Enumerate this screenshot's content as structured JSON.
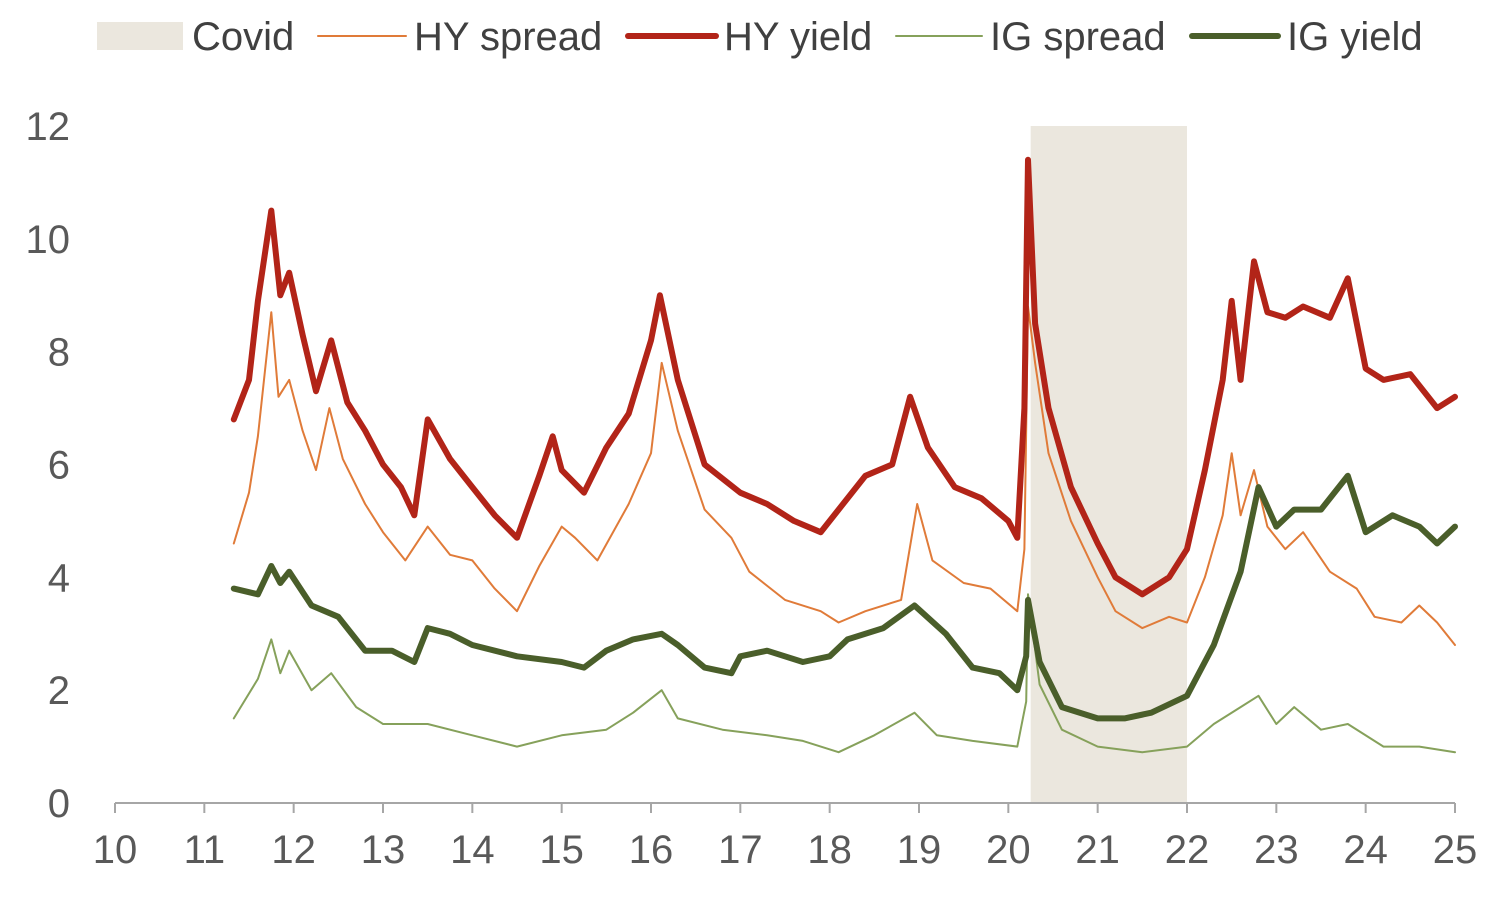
{
  "chart_data": {
    "type": "line",
    "title": "",
    "xlabel": "",
    "ylabel": "",
    "xlim": [
      10,
      25
    ],
    "ylim": [
      0,
      12
    ],
    "x_ticks": [
      "10",
      "11",
      "12",
      "13",
      "14",
      "15",
      "16",
      "17",
      "18",
      "19",
      "20",
      "21",
      "22",
      "23",
      "24",
      "25"
    ],
    "y_ticks": [
      "0",
      "2",
      "4",
      "6",
      "8",
      "10",
      "12"
    ],
    "grid": false,
    "legend_position": "top",
    "shaded_regions": [
      {
        "name": "Covid",
        "x_start": 20.25,
        "x_end": 22.0,
        "color": "#ebe7de"
      }
    ],
    "series": [
      {
        "name": "HY spread",
        "color": "#e07b39",
        "width": 2,
        "points": [
          [
            11.33,
            4.6
          ],
          [
            11.5,
            5.5
          ],
          [
            11.6,
            6.5
          ],
          [
            11.75,
            8.7
          ],
          [
            11.83,
            7.2
          ],
          [
            11.95,
            7.5
          ],
          [
            12.1,
            6.6
          ],
          [
            12.25,
            5.9
          ],
          [
            12.4,
            7.0
          ],
          [
            12.55,
            6.1
          ],
          [
            12.8,
            5.3
          ],
          [
            13.0,
            4.8
          ],
          [
            13.25,
            4.3
          ],
          [
            13.5,
            4.9
          ],
          [
            13.75,
            4.4
          ],
          [
            14.0,
            4.3
          ],
          [
            14.25,
            3.8
          ],
          [
            14.5,
            3.4
          ],
          [
            14.75,
            4.2
          ],
          [
            15.0,
            4.9
          ],
          [
            15.15,
            4.7
          ],
          [
            15.4,
            4.3
          ],
          [
            15.75,
            5.3
          ],
          [
            16.0,
            6.2
          ],
          [
            16.12,
            7.8
          ],
          [
            16.3,
            6.6
          ],
          [
            16.6,
            5.2
          ],
          [
            16.9,
            4.7
          ],
          [
            17.1,
            4.1
          ],
          [
            17.5,
            3.6
          ],
          [
            17.9,
            3.4
          ],
          [
            18.1,
            3.2
          ],
          [
            18.4,
            3.4
          ],
          [
            18.8,
            3.6
          ],
          [
            18.98,
            5.3
          ],
          [
            19.15,
            4.3
          ],
          [
            19.5,
            3.9
          ],
          [
            19.8,
            3.8
          ],
          [
            20.1,
            3.4
          ],
          [
            20.18,
            4.5
          ],
          [
            20.22,
            8.8
          ],
          [
            20.3,
            7.8
          ],
          [
            20.45,
            6.2
          ],
          [
            20.7,
            5.0
          ],
          [
            21.0,
            4.0
          ],
          [
            21.2,
            3.4
          ],
          [
            21.5,
            3.1
          ],
          [
            21.8,
            3.3
          ],
          [
            22.0,
            3.2
          ],
          [
            22.2,
            4.0
          ],
          [
            22.4,
            5.1
          ],
          [
            22.5,
            6.2
          ],
          [
            22.6,
            5.1
          ],
          [
            22.75,
            5.9
          ],
          [
            22.9,
            4.9
          ],
          [
            23.1,
            4.5
          ],
          [
            23.3,
            4.8
          ],
          [
            23.6,
            4.1
          ],
          [
            23.9,
            3.8
          ],
          [
            24.1,
            3.3
          ],
          [
            24.4,
            3.2
          ],
          [
            24.6,
            3.5
          ],
          [
            24.8,
            3.2
          ],
          [
            25.0,
            2.8
          ]
        ]
      },
      {
        "name": "HY yield",
        "color": "#b22418",
        "width": 6,
        "points": [
          [
            11.33,
            6.8
          ],
          [
            11.5,
            7.5
          ],
          [
            11.6,
            8.9
          ],
          [
            11.75,
            10.5
          ],
          [
            11.85,
            9.0
          ],
          [
            11.95,
            9.4
          ],
          [
            12.1,
            8.3
          ],
          [
            12.25,
            7.3
          ],
          [
            12.42,
            8.2
          ],
          [
            12.6,
            7.1
          ],
          [
            12.8,
            6.6
          ],
          [
            13.0,
            6.0
          ],
          [
            13.2,
            5.6
          ],
          [
            13.35,
            5.1
          ],
          [
            13.5,
            6.8
          ],
          [
            13.75,
            6.1
          ],
          [
            14.0,
            5.6
          ],
          [
            14.25,
            5.1
          ],
          [
            14.5,
            4.7
          ],
          [
            14.75,
            5.8
          ],
          [
            14.9,
            6.5
          ],
          [
            15.0,
            5.9
          ],
          [
            15.25,
            5.5
          ],
          [
            15.5,
            6.3
          ],
          [
            15.75,
            6.9
          ],
          [
            16.0,
            8.2
          ],
          [
            16.1,
            9.0
          ],
          [
            16.3,
            7.5
          ],
          [
            16.6,
            6.0
          ],
          [
            17.0,
            5.5
          ],
          [
            17.3,
            5.3
          ],
          [
            17.6,
            5.0
          ],
          [
            17.9,
            4.8
          ],
          [
            18.1,
            5.2
          ],
          [
            18.4,
            5.8
          ],
          [
            18.7,
            6.0
          ],
          [
            18.9,
            7.2
          ],
          [
            19.1,
            6.3
          ],
          [
            19.4,
            5.6
          ],
          [
            19.7,
            5.4
          ],
          [
            20.0,
            5.0
          ],
          [
            20.1,
            4.7
          ],
          [
            20.18,
            7.0
          ],
          [
            20.22,
            11.4
          ],
          [
            20.3,
            8.5
          ],
          [
            20.45,
            7.0
          ],
          [
            20.7,
            5.6
          ],
          [
            21.0,
            4.6
          ],
          [
            21.2,
            4.0
          ],
          [
            21.5,
            3.7
          ],
          [
            21.8,
            4.0
          ],
          [
            22.0,
            4.5
          ],
          [
            22.2,
            5.9
          ],
          [
            22.4,
            7.5
          ],
          [
            22.5,
            8.9
          ],
          [
            22.6,
            7.5
          ],
          [
            22.75,
            9.6
          ],
          [
            22.9,
            8.7
          ],
          [
            23.1,
            8.6
          ],
          [
            23.3,
            8.8
          ],
          [
            23.6,
            8.6
          ],
          [
            23.8,
            9.3
          ],
          [
            24.0,
            7.7
          ],
          [
            24.2,
            7.5
          ],
          [
            24.5,
            7.6
          ],
          [
            24.8,
            7.0
          ],
          [
            25.0,
            7.2
          ]
        ]
      },
      {
        "name": "IG spread",
        "color": "#86a15b",
        "width": 2,
        "points": [
          [
            11.33,
            1.5
          ],
          [
            11.6,
            2.2
          ],
          [
            11.75,
            2.9
          ],
          [
            11.85,
            2.3
          ],
          [
            11.95,
            2.7
          ],
          [
            12.2,
            2.0
          ],
          [
            12.42,
            2.3
          ],
          [
            12.7,
            1.7
          ],
          [
            13.0,
            1.4
          ],
          [
            13.5,
            1.4
          ],
          [
            14.0,
            1.2
          ],
          [
            14.5,
            1.0
          ],
          [
            15.0,
            1.2
          ],
          [
            15.5,
            1.3
          ],
          [
            15.8,
            1.6
          ],
          [
            16.12,
            2.0
          ],
          [
            16.3,
            1.5
          ],
          [
            16.8,
            1.3
          ],
          [
            17.3,
            1.2
          ],
          [
            17.7,
            1.1
          ],
          [
            18.1,
            0.9
          ],
          [
            18.5,
            1.2
          ],
          [
            18.95,
            1.6
          ],
          [
            19.2,
            1.2
          ],
          [
            19.6,
            1.1
          ],
          [
            20.1,
            1.0
          ],
          [
            20.2,
            1.8
          ],
          [
            20.22,
            3.7
          ],
          [
            20.35,
            2.1
          ],
          [
            20.6,
            1.3
          ],
          [
            21.0,
            1.0
          ],
          [
            21.5,
            0.9
          ],
          [
            22.0,
            1.0
          ],
          [
            22.3,
            1.4
          ],
          [
            22.6,
            1.7
          ],
          [
            22.8,
            1.9
          ],
          [
            23.0,
            1.4
          ],
          [
            23.2,
            1.7
          ],
          [
            23.5,
            1.3
          ],
          [
            23.8,
            1.4
          ],
          [
            24.2,
            1.0
          ],
          [
            24.6,
            1.0
          ],
          [
            25.0,
            0.9
          ]
        ]
      },
      {
        "name": "IG yield",
        "color": "#4a5e2a",
        "width": 6,
        "points": [
          [
            11.33,
            3.8
          ],
          [
            11.6,
            3.7
          ],
          [
            11.75,
            4.2
          ],
          [
            11.85,
            3.9
          ],
          [
            11.95,
            4.1
          ],
          [
            12.2,
            3.5
          ],
          [
            12.5,
            3.3
          ],
          [
            12.8,
            2.7
          ],
          [
            13.1,
            2.7
          ],
          [
            13.35,
            2.5
          ],
          [
            13.5,
            3.1
          ],
          [
            13.75,
            3.0
          ],
          [
            14.0,
            2.8
          ],
          [
            14.5,
            2.6
          ],
          [
            15.0,
            2.5
          ],
          [
            15.25,
            2.4
          ],
          [
            15.5,
            2.7
          ],
          [
            15.8,
            2.9
          ],
          [
            16.12,
            3.0
          ],
          [
            16.3,
            2.8
          ],
          [
            16.6,
            2.4
          ],
          [
            16.9,
            2.3
          ],
          [
            17.0,
            2.6
          ],
          [
            17.3,
            2.7
          ],
          [
            17.7,
            2.5
          ],
          [
            18.0,
            2.6
          ],
          [
            18.2,
            2.9
          ],
          [
            18.6,
            3.1
          ],
          [
            18.95,
            3.5
          ],
          [
            19.3,
            3.0
          ],
          [
            19.6,
            2.4
          ],
          [
            19.9,
            2.3
          ],
          [
            20.1,
            2.0
          ],
          [
            20.2,
            2.6
          ],
          [
            20.22,
            3.6
          ],
          [
            20.35,
            2.5
          ],
          [
            20.6,
            1.7
          ],
          [
            21.0,
            1.5
          ],
          [
            21.3,
            1.5
          ],
          [
            21.6,
            1.6
          ],
          [
            22.0,
            1.9
          ],
          [
            22.3,
            2.8
          ],
          [
            22.6,
            4.1
          ],
          [
            22.8,
            5.6
          ],
          [
            23.0,
            4.9
          ],
          [
            23.2,
            5.2
          ],
          [
            23.5,
            5.2
          ],
          [
            23.8,
            5.8
          ],
          [
            24.0,
            4.8
          ],
          [
            24.3,
            5.1
          ],
          [
            24.6,
            4.9
          ],
          [
            24.8,
            4.6
          ],
          [
            25.0,
            4.9
          ]
        ]
      }
    ]
  }
}
